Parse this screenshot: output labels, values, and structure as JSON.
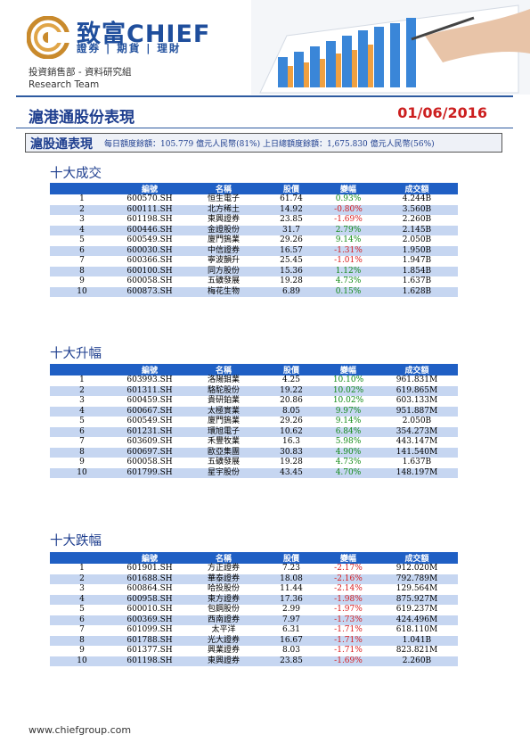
{
  "header": {
    "brand_name": "致富CHIEF",
    "brand_sub": "證券 | 期貨 | 理財",
    "dept_line1": "投資銷售部 - 資料研究組",
    "dept_line2": "Research Team"
  },
  "report": {
    "title": "滬港通股份表現",
    "date": "01/06/2016"
  },
  "summary": {
    "label": "滬股通表現",
    "text": "每日額度餘額：105.779 億元人民幣(81%)    上日總額度餘額：1,675.830 億元人民幣(56%)"
  },
  "columns": [
    "編號",
    "名稱",
    "股價",
    "變幅",
    "成交額"
  ],
  "sections": [
    {
      "title": "十大成交",
      "rows": [
        {
          "rank": "1",
          "code": "600570.SH",
          "name": "恒生電子",
          "price": "61.74",
          "change": "0.93%",
          "turnover": "4.244B"
        },
        {
          "rank": "2",
          "code": "600111.SH",
          "name": "北方稀土",
          "price": "14.92",
          "change": "-0.80%",
          "turnover": "3.560B"
        },
        {
          "rank": "3",
          "code": "601198.SH",
          "name": "東興證券",
          "price": "23.85",
          "change": "-1.69%",
          "turnover": "2.260B"
        },
        {
          "rank": "4",
          "code": "600446.SH",
          "name": "金證股份",
          "price": "31.7",
          "change": "2.79%",
          "turnover": "2.145B"
        },
        {
          "rank": "5",
          "code": "600549.SH",
          "name": "廈門鎢業",
          "price": "29.26",
          "change": "9.14%",
          "turnover": "2.050B"
        },
        {
          "rank": "6",
          "code": "600030.SH",
          "name": "中信證券",
          "price": "16.57",
          "change": "-1.31%",
          "turnover": "1.950B"
        },
        {
          "rank": "7",
          "code": "600366.SH",
          "name": "寧波韻升",
          "price": "25.45",
          "change": "-1.01%",
          "turnover": "1.947B"
        },
        {
          "rank": "8",
          "code": "600100.SH",
          "name": "同方股份",
          "price": "15.36",
          "change": "1.12%",
          "turnover": "1.854B"
        },
        {
          "rank": "9",
          "code": "600058.SH",
          "name": "五礦發展",
          "price": "19.28",
          "change": "4.73%",
          "turnover": "1.637B"
        },
        {
          "rank": "10",
          "code": "600873.SH",
          "name": "梅花生物",
          "price": "6.89",
          "change": "0.15%",
          "turnover": "1.628B"
        }
      ]
    },
    {
      "title": "十大升幅",
      "rows": [
        {
          "rank": "1",
          "code": "603993.SH",
          "name": "洛陽鉬業",
          "price": "4.25",
          "change": "10.10%",
          "turnover": "961.831M"
        },
        {
          "rank": "2",
          "code": "601311.SH",
          "name": "駱駝股份",
          "price": "19.22",
          "change": "10.02%",
          "turnover": "619.865M"
        },
        {
          "rank": "3",
          "code": "600459.SH",
          "name": "貴研鉑業",
          "price": "20.86",
          "change": "10.02%",
          "turnover": "603.133M"
        },
        {
          "rank": "4",
          "code": "600667.SH",
          "name": "太極實業",
          "price": "8.05",
          "change": "9.97%",
          "turnover": "951.887M"
        },
        {
          "rank": "5",
          "code": "600549.SH",
          "name": "廈門鎢業",
          "price": "29.26",
          "change": "9.14%",
          "turnover": "2.050B"
        },
        {
          "rank": "6",
          "code": "601231.SH",
          "name": "環旭電子",
          "price": "10.62",
          "change": "6.84%",
          "turnover": "354.273M"
        },
        {
          "rank": "7",
          "code": "603609.SH",
          "name": "禾豐牧業",
          "price": "16.3",
          "change": "5.98%",
          "turnover": "443.147M"
        },
        {
          "rank": "8",
          "code": "600697.SH",
          "name": "歐亞集團",
          "price": "30.83",
          "change": "4.90%",
          "turnover": "141.540M"
        },
        {
          "rank": "9",
          "code": "600058.SH",
          "name": "五礦發展",
          "price": "19.28",
          "change": "4.73%",
          "turnover": "1.637B"
        },
        {
          "rank": "10",
          "code": "601799.SH",
          "name": "星宇股份",
          "price": "43.45",
          "change": "4.70%",
          "turnover": "148.197M"
        }
      ]
    },
    {
      "title": "十大跌幅",
      "rows": [
        {
          "rank": "1",
          "code": "601901.SH",
          "name": "方正證券",
          "price": "7.23",
          "change": "-2.17%",
          "turnover": "912.020M"
        },
        {
          "rank": "2",
          "code": "601688.SH",
          "name": "華泰證券",
          "price": "18.08",
          "change": "-2.16%",
          "turnover": "792.789M"
        },
        {
          "rank": "3",
          "code": "600864.SH",
          "name": "哈投股份",
          "price": "11.44",
          "change": "-2.14%",
          "turnover": "129.564M"
        },
        {
          "rank": "4",
          "code": "600958.SH",
          "name": "東方證券",
          "price": "17.36",
          "change": "-1.98%",
          "turnover": "875.927M"
        },
        {
          "rank": "5",
          "code": "600010.SH",
          "name": "包鋼股份",
          "price": "2.99",
          "change": "-1.97%",
          "turnover": "619.237M"
        },
        {
          "rank": "6",
          "code": "600369.SH",
          "name": "西南證券",
          "price": "7.97",
          "change": "-1.73%",
          "turnover": "424.496M"
        },
        {
          "rank": "7",
          "code": "601099.SH",
          "name": "太平洋",
          "price": "6.31",
          "change": "-1.71%",
          "turnover": "618.110M"
        },
        {
          "rank": "8",
          "code": "601788.SH",
          "name": "光大證券",
          "price": "16.67",
          "change": "-1.71%",
          "turnover": "1.041B"
        },
        {
          "rank": "9",
          "code": "601377.SH",
          "name": "興業證券",
          "price": "8.03",
          "change": "-1.71%",
          "turnover": "823.821M"
        },
        {
          "rank": "10",
          "code": "601198.SH",
          "name": "東興證券",
          "price": "23.85",
          "change": "-1.69%",
          "turnover": "2.260B"
        }
      ]
    }
  ],
  "footer": {
    "url": "www.chiefgroup.com"
  },
  "colors": {
    "brand_blue": "#1f4e9c",
    "header_row": "#1f5fc4",
    "alt_row": "#c6d6f1",
    "positive": "#138a16",
    "negative": "#d91b1b",
    "date_red": "#cc1f1f"
  }
}
